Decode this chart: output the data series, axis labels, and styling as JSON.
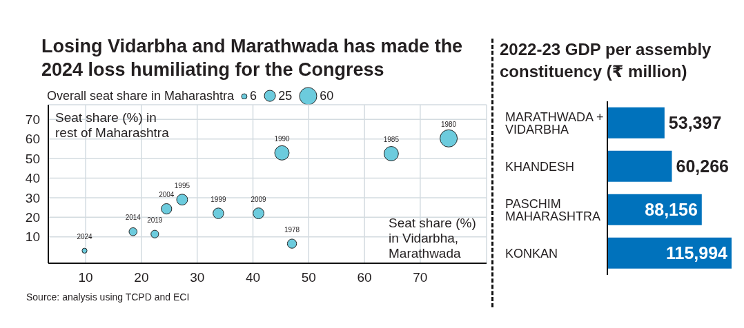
{
  "chart_data": [
    {
      "type": "bubble",
      "title": "Losing Vidarbha and Marathwada has made the 2024 loss humiliating for the Congress",
      "legend_title": "Overall seat share in Maharashtra",
      "size_legend": [
        6,
        25,
        60
      ],
      "xlabel": "Seat share (%) in Vidarbha, Marathwada",
      "ylabel": "Seat share (%) in rest of Maharashtra",
      "x": [
        9.8,
        18.5,
        22.4,
        24.5,
        27.3,
        33.8,
        41.0,
        47.0,
        45.2,
        64.8,
        75.1
      ],
      "values": [
        2.9,
        12.6,
        11.4,
        24.3,
        29.0,
        22.0,
        22.0,
        6.5,
        52.9,
        52.5,
        60.3
      ],
      "sizes": [
        5,
        13,
        12,
        22,
        24,
        23,
        24,
        17,
        42,
        42,
        60
      ],
      "color": "#6ccbdd",
      "xlim": [
        3.3,
        81.9
      ],
      "xticks": [
        10,
        20,
        30,
        40,
        50,
        60,
        70
      ],
      "ylim": [
        -3.5,
        77.5
      ],
      "yticks": [
        10,
        20,
        30,
        40,
        50,
        60,
        70
      ],
      "grid": true,
      "annotations": [
        {
          "text": "2024",
          "x": 9.8,
          "y": 2.9
        },
        {
          "text": "2014",
          "x": 18.5,
          "y": 12.6
        },
        {
          "text": "2019",
          "x": 22.4,
          "y": 11.4
        },
        {
          "text": "2004",
          "x": 24.5,
          "y": 24.3
        },
        {
          "text": "1995",
          "x": 27.3,
          "y": 29.0
        },
        {
          "text": "1999",
          "x": 33.8,
          "y": 22.0
        },
        {
          "text": "2009",
          "x": 41.0,
          "y": 22.0
        },
        {
          "text": "1978",
          "x": 47.0,
          "y": 6.5
        },
        {
          "text": "1990",
          "x": 45.2,
          "y": 52.9
        },
        {
          "text": "1985",
          "x": 64.8,
          "y": 52.5
        },
        {
          "text": "1980",
          "x": 75.1,
          "y": 60.3
        },
        "Source: analysis using TCPD and ECI"
      ]
    },
    {
      "type": "bar",
      "orientation": "horizontal",
      "title": "2022-23 GDP per assembly constituency (₹ million)",
      "categories": [
        "MARATHWADA + VIDARBHA",
        "KHANDESH",
        "PASCHIM MAHARASHTRA",
        "KONKAN"
      ],
      "values": [
        53397,
        60266,
        88156,
        115994
      ],
      "value_labels": [
        "53,397",
        "60,266",
        "88,156",
        "115,994"
      ],
      "color": "#0072bc"
    }
  ]
}
